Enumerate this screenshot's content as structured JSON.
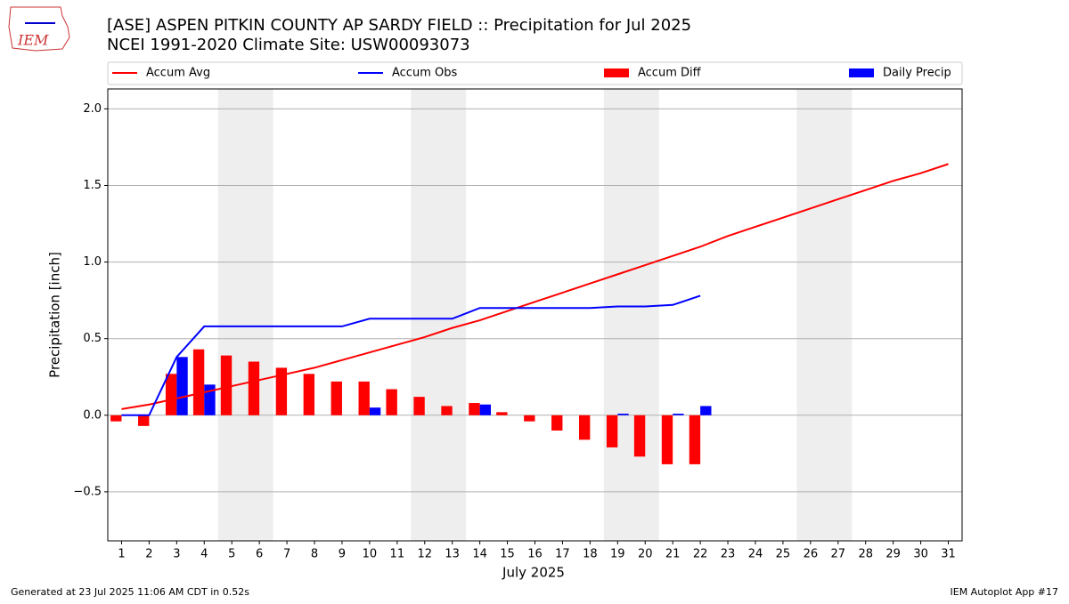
{
  "logo_text": "IEM",
  "footer_left": "Generated at 23 Jul 2025 11:06 AM CDT in 0.52s",
  "footer_right": "IEM Autoplot App #17",
  "chart_data": {
    "type": "bar_line",
    "title": "[ASE] ASPEN PITKIN COUNTY AP SARDY FIELD :: Precipitation for Jul 2025",
    "subtitle": "NCEI 1991-2020 Climate Site: USW00093073",
    "xlabel": "July 2025",
    "ylabel": "Precipitation [inch]",
    "x": [
      1,
      2,
      3,
      4,
      5,
      6,
      7,
      8,
      9,
      10,
      11,
      12,
      13,
      14,
      15,
      16,
      17,
      18,
      19,
      20,
      21,
      22,
      23,
      24,
      25,
      26,
      27,
      28,
      29,
      30,
      31
    ],
    "xlim": [
      0.5,
      31.5
    ],
    "xticks": [
      1,
      2,
      3,
      4,
      5,
      6,
      7,
      8,
      9,
      10,
      11,
      12,
      13,
      14,
      15,
      16,
      17,
      18,
      19,
      20,
      21,
      22,
      23,
      24,
      25,
      26,
      27,
      28,
      29,
      30,
      31
    ],
    "ylim": [
      -0.82,
      2.13
    ],
    "yticks": [
      {
        "value": -0.5,
        "label": "−0.5"
      },
      {
        "value": 0,
        "label": "0.0"
      },
      {
        "value": 0.5,
        "label": "0.5"
      },
      {
        "value": 1,
        "label": "1.0"
      },
      {
        "value": 1.5,
        "label": "1.5"
      },
      {
        "value": 2,
        "label": "2.0"
      }
    ],
    "grid": true,
    "weekend_spans": [
      [
        4.5,
        6.5
      ],
      [
        11.5,
        13.5
      ],
      [
        18.5,
        20.5
      ],
      [
        25.5,
        27.5
      ]
    ],
    "series": [
      {
        "name": "Accum Avg",
        "kind": "line",
        "color": "#ff0000",
        "values": [
          0.04,
          0.07,
          0.11,
          0.15,
          0.19,
          0.23,
          0.27,
          0.31,
          0.36,
          0.41,
          0.46,
          0.51,
          0.57,
          0.62,
          0.68,
          0.74,
          0.8,
          0.86,
          0.92,
          0.98,
          1.04,
          1.1,
          1.17,
          1.23,
          1.29,
          1.35,
          1.41,
          1.47,
          1.53,
          1.58,
          1.64
        ]
      },
      {
        "name": "Accum Obs",
        "kind": "line",
        "color": "#0000ff",
        "values": [
          0,
          0,
          0.38,
          0.58,
          0.58,
          0.58,
          0.58,
          0.58,
          0.58,
          0.63,
          0.63,
          0.63,
          0.63,
          0.7,
          0.7,
          0.7,
          0.7,
          0.7,
          0.71,
          0.71,
          0.72,
          0.78,
          null,
          null,
          null,
          null,
          null,
          null,
          null,
          null,
          null
        ]
      },
      {
        "name": "Accum Diff",
        "kind": "bar",
        "offset": -1,
        "color": "#ff0000",
        "values": [
          -0.04,
          -0.07,
          0.27,
          0.43,
          0.39,
          0.35,
          0.31,
          0.27,
          0.22,
          0.22,
          0.17,
          0.12,
          0.06,
          0.08,
          0.02,
          -0.04,
          -0.1,
          -0.16,
          -0.21,
          -0.27,
          -0.32,
          -0.32,
          null,
          null,
          null,
          null,
          null,
          null,
          null,
          null,
          null
        ]
      },
      {
        "name": "Daily Precip",
        "kind": "bar",
        "offset": 0,
        "color": "#0000ff",
        "values": [
          0,
          0,
          0.38,
          0.2,
          0,
          0,
          0,
          0,
          0,
          0.05,
          0,
          0,
          0,
          0.07,
          0,
          0,
          0,
          0,
          0.01,
          0,
          0.01,
          0.06,
          null,
          null,
          null,
          null,
          null,
          null,
          null,
          null,
          null
        ]
      }
    ]
  }
}
